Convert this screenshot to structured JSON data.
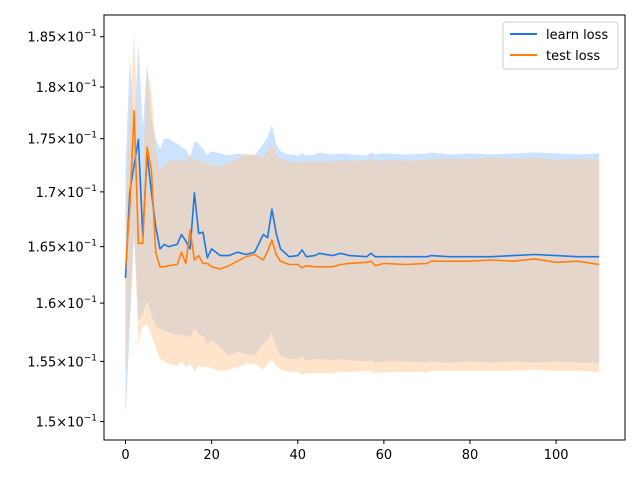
{
  "chart_data": {
    "type": "line",
    "title": "",
    "xlabel": "",
    "ylabel": "",
    "yscale": "log",
    "xlim": [
      -5,
      116
    ],
    "ylim": [
      0.1485,
      0.1872
    ],
    "xticks": [
      0,
      20,
      40,
      60,
      80,
      100
    ],
    "xtick_labels": [
      "0",
      "20",
      "40",
      "60",
      "80",
      "100"
    ],
    "yticks": [
      0.15,
      0.155,
      0.16,
      0.165,
      0.17,
      0.175,
      0.18,
      0.185
    ],
    "ytick_labels": [
      {
        "mantissa": "1.5",
        "exp": "−1"
      },
      {
        "mantissa": "1.55",
        "exp": "−1"
      },
      {
        "mantissa": "1.6",
        "exp": "−1"
      },
      {
        "mantissa": "1.65",
        "exp": "−1"
      },
      {
        "mantissa": "1.7",
        "exp": "−1"
      },
      {
        "mantissa": "1.75",
        "exp": "−1"
      },
      {
        "mantissa": "1.8",
        "exp": "−1"
      },
      {
        "mantissa": "1.85",
        "exp": "−1"
      }
    ],
    "ytick_times": "×10",
    "grid": false,
    "legend_position": "top-right",
    "series": [
      {
        "name": "learn loss",
        "color": "#1f77e4",
        "band_color": "#a9d1ff",
        "band_opacity": 0.6,
        "x": [
          0,
          1,
          2,
          3,
          4,
          5,
          6,
          7,
          8,
          9,
          10,
          12,
          13,
          14,
          15,
          16,
          17,
          18,
          19,
          20,
          22,
          24,
          26,
          28,
          30,
          32,
          33,
          34,
          35,
          36,
          38,
          40,
          41,
          42,
          44,
          45,
          48,
          50,
          52,
          56,
          57,
          58,
          60,
          65,
          70,
          71,
          75,
          80,
          85,
          90,
          95,
          100,
          105,
          110
        ],
        "y": [
          0.1622,
          0.17,
          0.1725,
          0.1749,
          0.166,
          0.1735,
          0.17,
          0.1668,
          0.1648,
          0.1652,
          0.165,
          0.1652,
          0.1661,
          0.1655,
          0.1648,
          0.1699,
          0.1662,
          0.1663,
          0.164,
          0.1648,
          0.1642,
          0.1642,
          0.1645,
          0.1643,
          0.1645,
          0.1661,
          0.1658,
          0.1684,
          0.1662,
          0.1648,
          0.1641,
          0.1642,
          0.1647,
          0.1641,
          0.1642,
          0.1644,
          0.1642,
          0.1644,
          0.1642,
          0.1641,
          0.1644,
          0.1641,
          0.1641,
          0.1641,
          0.1641,
          0.1642,
          0.1641,
          0.1641,
          0.1641,
          0.1642,
          0.1643,
          0.1642,
          0.1641,
          0.1641
        ],
        "upper": [
          0.172,
          0.183,
          0.176,
          0.1843,
          0.176,
          0.1822,
          0.177,
          0.175,
          0.174,
          0.175,
          0.175,
          0.1745,
          0.1742,
          0.174,
          0.1732,
          0.1748,
          0.1745,
          0.174,
          0.1735,
          0.1738,
          0.1736,
          0.1734,
          0.1736,
          0.1735,
          0.1734,
          0.1745,
          0.1752,
          0.1763,
          0.1745,
          0.1738,
          0.1735,
          0.1734,
          0.1736,
          0.1734,
          0.1735,
          0.1737,
          0.1735,
          0.1736,
          0.1735,
          0.1734,
          0.1737,
          0.1735,
          0.1736,
          0.1735,
          0.1736,
          0.1737,
          0.1735,
          0.1736,
          0.1735,
          0.1736,
          0.1737,
          0.1736,
          0.1735,
          0.1736
        ],
        "lower": [
          0.1503,
          0.158,
          0.166,
          0.1585,
          0.159,
          0.1602,
          0.159,
          0.158,
          0.1578,
          0.1576,
          0.1575,
          0.1572,
          0.1573,
          0.1572,
          0.157,
          0.1578,
          0.1573,
          0.1572,
          0.1565,
          0.1568,
          0.1562,
          0.1555,
          0.1558,
          0.1556,
          0.1555,
          0.1565,
          0.1568,
          0.1575,
          0.1562,
          0.1555,
          0.1552,
          0.1552,
          0.1554,
          0.1551,
          0.1552,
          0.1552,
          0.1551,
          0.1552,
          0.1551,
          0.155,
          0.1551,
          0.1549,
          0.155,
          0.155,
          0.1549,
          0.155,
          0.1549,
          0.155,
          0.1549,
          0.155,
          0.1549,
          0.155,
          0.1549,
          0.1549
        ]
      },
      {
        "name": "test loss",
        "color": "#ff7f0e",
        "band_color": "#ffc999",
        "band_opacity": 0.5,
        "x": [
          0,
          1,
          2,
          3,
          4,
          5,
          6,
          7,
          8,
          9,
          10,
          12,
          13,
          14,
          15,
          16,
          17,
          18,
          19,
          20,
          22,
          24,
          26,
          28,
          30,
          32,
          33,
          34,
          35,
          36,
          38,
          40,
          41,
          42,
          44,
          45,
          48,
          50,
          52,
          56,
          57,
          58,
          60,
          65,
          70,
          71,
          75,
          80,
          85,
          90,
          95,
          100,
          105,
          110
        ],
        "y": [
          0.163,
          0.1685,
          0.1777,
          0.1653,
          0.1653,
          0.1742,
          0.172,
          0.1645,
          0.1632,
          0.1632,
          0.1633,
          0.1634,
          0.1645,
          0.1635,
          0.1665,
          0.1638,
          0.1642,
          0.1635,
          0.1635,
          0.1632,
          0.163,
          0.1633,
          0.1637,
          0.1641,
          0.1643,
          0.1638,
          0.1646,
          0.1656,
          0.1643,
          0.1637,
          0.1634,
          0.1634,
          0.1631,
          0.1633,
          0.1632,
          0.1632,
          0.1632,
          0.1634,
          0.1635,
          0.1636,
          0.1637,
          0.1633,
          0.1635,
          0.1634,
          0.1635,
          0.1637,
          0.1637,
          0.1637,
          0.1638,
          0.1637,
          0.1639,
          0.1636,
          0.1637,
          0.1634
        ],
        "upper": [
          0.168,
          0.1775,
          0.1855,
          0.174,
          0.171,
          0.182,
          0.1795,
          0.174,
          0.172,
          0.1725,
          0.173,
          0.1728,
          0.1732,
          0.1726,
          0.1735,
          0.1728,
          0.1732,
          0.1726,
          0.1728,
          0.1725,
          0.1724,
          0.1727,
          0.1731,
          0.1735,
          0.1735,
          0.1732,
          0.1738,
          0.1745,
          0.1735,
          0.1731,
          0.1728,
          0.1728,
          0.1727,
          0.1728,
          0.1728,
          0.1728,
          0.1728,
          0.1729,
          0.1729,
          0.173,
          0.1731,
          0.1728,
          0.173,
          0.1729,
          0.173,
          0.1731,
          0.1731,
          0.1731,
          0.1732,
          0.1731,
          0.1732,
          0.173,
          0.1731,
          0.173
        ],
        "lower": [
          0.1535,
          0.1595,
          0.167,
          0.1565,
          0.158,
          0.1582,
          0.1572,
          0.1562,
          0.1552,
          0.155,
          0.1548,
          0.1546,
          0.155,
          0.1545,
          0.1548,
          0.1542,
          0.1546,
          0.1545,
          0.1546,
          0.1544,
          0.1542,
          0.1543,
          0.1545,
          0.1548,
          0.1548,
          0.1543,
          0.1548,
          0.1552,
          0.1546,
          0.1543,
          0.1541,
          0.1541,
          0.1539,
          0.154,
          0.154,
          0.154,
          0.154,
          0.1541,
          0.1541,
          0.1542,
          0.1542,
          0.154,
          0.1541,
          0.1541,
          0.1541,
          0.1542,
          0.1542,
          0.1542,
          0.1542,
          0.1542,
          0.1543,
          0.1542,
          0.1542,
          0.1541
        ]
      }
    ]
  }
}
